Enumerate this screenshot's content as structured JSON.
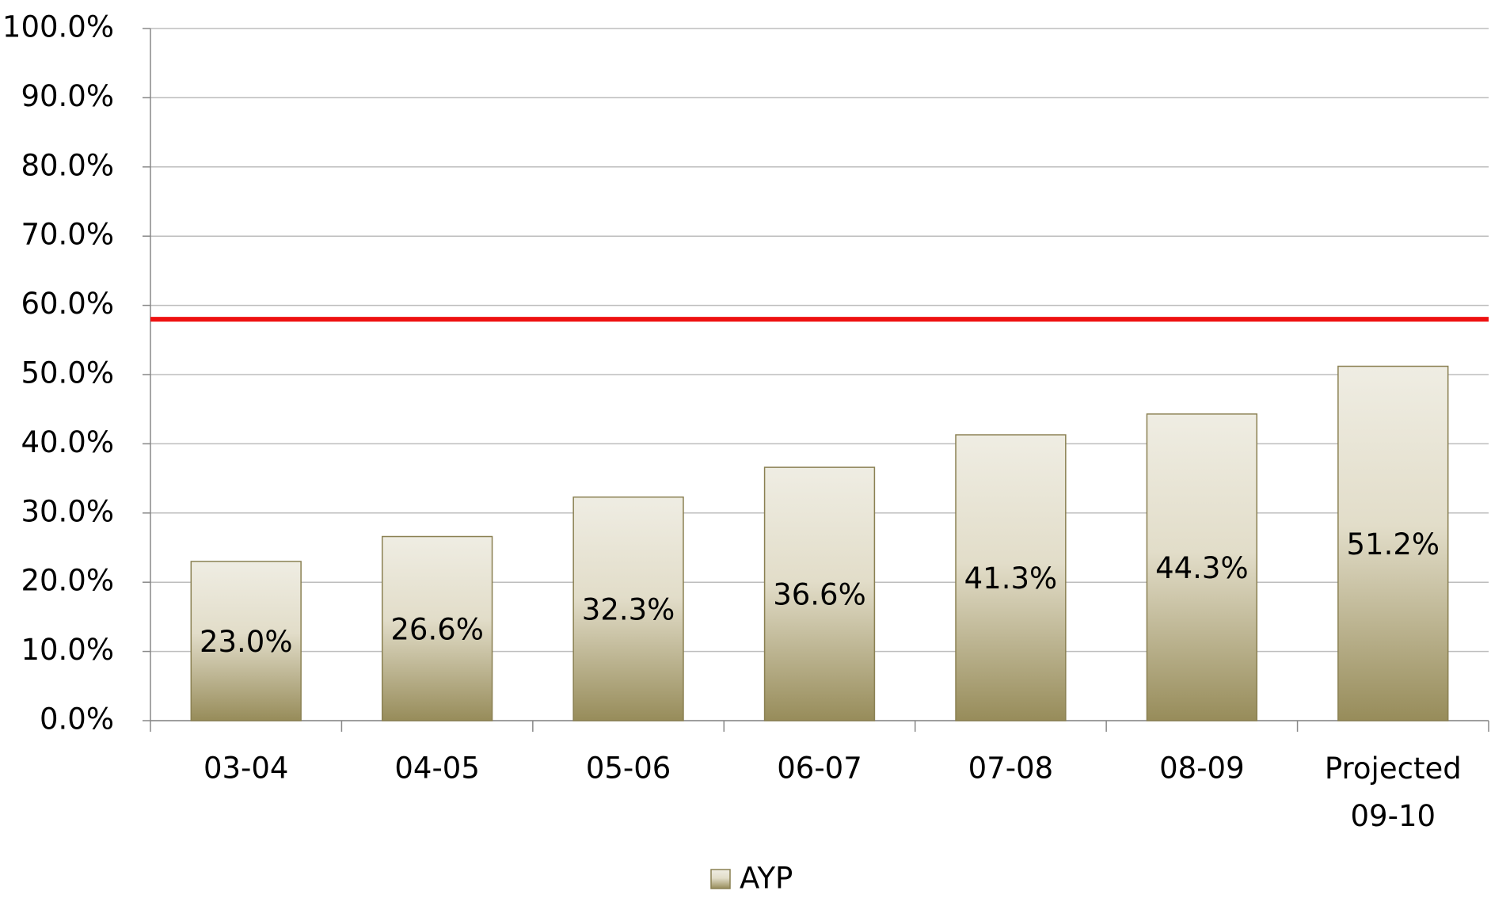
{
  "chart_data": {
    "type": "bar",
    "categories": [
      "03-04",
      "04-05",
      "05-06",
      "06-07",
      "07-08",
      "08-09",
      "Projected 09-10"
    ],
    "series": [
      {
        "name": "AYP",
        "color": "#978c5a",
        "values": [
          23.0,
          26.6,
          32.3,
          36.6,
          41.3,
          44.3,
          51.2
        ],
        "value_labels": [
          "23.0%",
          "26.6%",
          "32.3%",
          "36.6%",
          "41.3%",
          "44.3%",
          "51.2%"
        ]
      }
    ],
    "ylim": [
      0,
      100
    ],
    "yticks": [
      {
        "value": 0,
        "label": "0.0%"
      },
      {
        "value": 10,
        "label": "10.0%"
      },
      {
        "value": 20,
        "label": "20.0%"
      },
      {
        "value": 30,
        "label": "30.0%"
      },
      {
        "value": 40,
        "label": "40.0%"
      },
      {
        "value": 50,
        "label": "50.0%"
      },
      {
        "value": 60,
        "label": "60.0%"
      },
      {
        "value": 70,
        "label": "70.0%"
      },
      {
        "value": 80,
        "label": "80.0%"
      },
      {
        "value": 90,
        "label": "90.0%"
      },
      {
        "value": 100,
        "label": "100.0%"
      }
    ],
    "grid": true,
    "reference_line": {
      "value": 58,
      "color": "#ee1111"
    },
    "legend": "bottom"
  }
}
